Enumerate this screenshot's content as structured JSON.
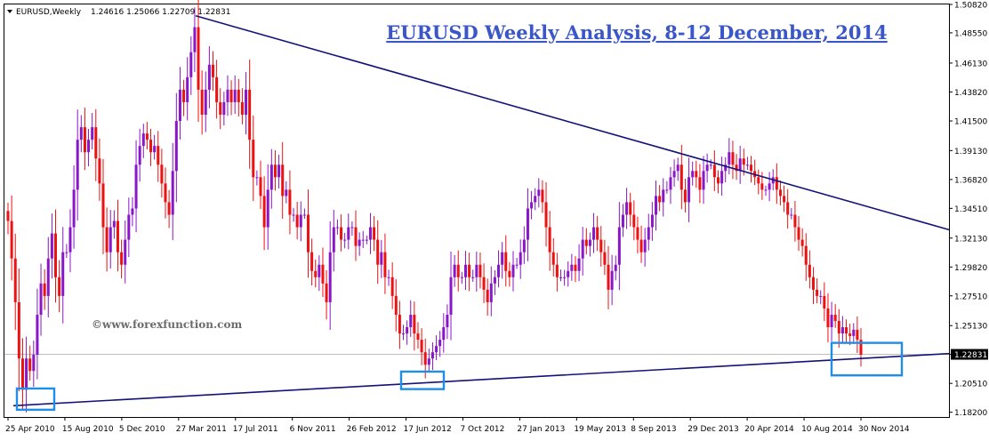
{
  "header": {
    "symbol": "EURUSD,Weekly",
    "ohlc": "1.24616 1.25066 1.22709 1.22831"
  },
  "title": "EURUSD Weekly Analysis, 8-12 December, 2014",
  "watermark": "©www.forexfunction.com",
  "colors": {
    "bull": "#8a16c9",
    "bear": "#ee1111",
    "trendline": "#12127a",
    "highlight_box": "#1f8ee8",
    "title": "#3a56c8"
  },
  "chart_data": {
    "type": "candlestick",
    "symbol": "EURUSD",
    "timeframe": "Weekly",
    "ylim": [
      1.1782,
      1.5082
    ],
    "y_ticks": [
      "1.50820",
      "1.48550",
      "1.46130",
      "1.43820",
      "1.41500",
      "1.39130",
      "1.36820",
      "1.34510",
      "1.32130",
      "1.29820",
      "1.27510",
      "1.25130",
      "1.22831",
      "1.20510",
      "1.18200"
    ],
    "x_ticks": [
      "25 Apr 2010",
      "15 Aug 2010",
      "5 Dec 2010",
      "27 Mar 2011",
      "17 Jul 2011",
      "6 Nov 2011",
      "26 Feb 2012",
      "17 Jun 2012",
      "7 Oct 2012",
      "27 Jan 2013",
      "19 May 2013",
      "8 Sep 2013",
      "29 Dec 2013",
      "20 Apr 2014",
      "10 Aug 2014",
      "30 Nov 2014"
    ],
    "current_price": 1.22831,
    "current_price_label": "1.22831",
    "closes": [
      1.335,
      1.305,
      1.27,
      1.225,
      1.2,
      1.225,
      1.215,
      1.228,
      1.26,
      1.285,
      1.275,
      1.305,
      1.325,
      1.29,
      1.275,
      1.31,
      1.31,
      1.33,
      1.36,
      1.4,
      1.41,
      1.39,
      1.4,
      1.41,
      1.385,
      1.365,
      1.33,
      1.31,
      1.33,
      1.335,
      1.31,
      1.3,
      1.32,
      1.34,
      1.345,
      1.38,
      1.395,
      1.405,
      1.4,
      1.39,
      1.395,
      1.38,
      1.365,
      1.35,
      1.34,
      1.375,
      1.415,
      1.44,
      1.43,
      1.45,
      1.47,
      1.49,
      1.44,
      1.42,
      1.44,
      1.46,
      1.45,
      1.43,
      1.42,
      1.43,
      1.44,
      1.43,
      1.44,
      1.43,
      1.42,
      1.44,
      1.4,
      1.37,
      1.37,
      1.355,
      1.33,
      1.36,
      1.38,
      1.37,
      1.38,
      1.355,
      1.36,
      1.34,
      1.34,
      1.33,
      1.34,
      1.34,
      1.31,
      1.295,
      1.29,
      1.3,
      1.285,
      1.27,
      1.31,
      1.33,
      1.33,
      1.32,
      1.32,
      1.33,
      1.33,
      1.315,
      1.32,
      1.32,
      1.32,
      1.33,
      1.32,
      1.3,
      1.31,
      1.29,
      1.29,
      1.275,
      1.26,
      1.245,
      1.245,
      1.25,
      1.26,
      1.245,
      1.24,
      1.23,
      1.22,
      1.225,
      1.23,
      1.235,
      1.24,
      1.25,
      1.26,
      1.29,
      1.3,
      1.29,
      1.29,
      1.3,
      1.29,
      1.29,
      1.3,
      1.29,
      1.28,
      1.27,
      1.285,
      1.29,
      1.3,
      1.31,
      1.295,
      1.29,
      1.3,
      1.3,
      1.31,
      1.32,
      1.345,
      1.35,
      1.355,
      1.36,
      1.35,
      1.33,
      1.31,
      1.3,
      1.29,
      1.29,
      1.29,
      1.295,
      1.3,
      1.295,
      1.305,
      1.32,
      1.315,
      1.32,
      1.33,
      1.32,
      1.31,
      1.3,
      1.28,
      1.295,
      1.3,
      1.33,
      1.34,
      1.35,
      1.34,
      1.33,
      1.32,
      1.31,
      1.32,
      1.33,
      1.34,
      1.355,
      1.35,
      1.36,
      1.36,
      1.37,
      1.375,
      1.38,
      1.36,
      1.35,
      1.37,
      1.375,
      1.37,
      1.36,
      1.375,
      1.38,
      1.38,
      1.37,
      1.365,
      1.375,
      1.38,
      1.39,
      1.38,
      1.375,
      1.385,
      1.38,
      1.38,
      1.375,
      1.37,
      1.365,
      1.36,
      1.36,
      1.365,
      1.37,
      1.36,
      1.355,
      1.35,
      1.34,
      1.34,
      1.33,
      1.32,
      1.315,
      1.3,
      1.29,
      1.28,
      1.275,
      1.275,
      1.265,
      1.25,
      1.26,
      1.255,
      1.245,
      1.25,
      1.245,
      1.243,
      1.248,
      1.24,
      1.228
    ],
    "trendlines": [
      {
        "name": "resistance",
        "points": [
          [
            "27 Mar 2011",
            1.503
          ],
          [
            "30 Nov 2014",
            1.348
          ]
        ]
      },
      {
        "name": "support",
        "points": [
          [
            "25 Apr 2010",
            1.187
          ],
          [
            "30 Nov 2014",
            1.225
          ]
        ]
      }
    ],
    "highlight_boxes": [
      {
        "x_range": [
          "25 Apr 2010",
          "15 Aug 2010"
        ],
        "y_range": [
          1.184,
          1.201
        ]
      },
      {
        "x_range": [
          "17 Jun 2012",
          "7 Oct 2012"
        ],
        "y_range": [
          1.2005,
          1.2145
        ]
      },
      {
        "x_range": [
          "10 Aug 2014",
          "30 Nov 2014"
        ],
        "y_range": [
          1.2115,
          1.2375
        ]
      }
    ]
  }
}
